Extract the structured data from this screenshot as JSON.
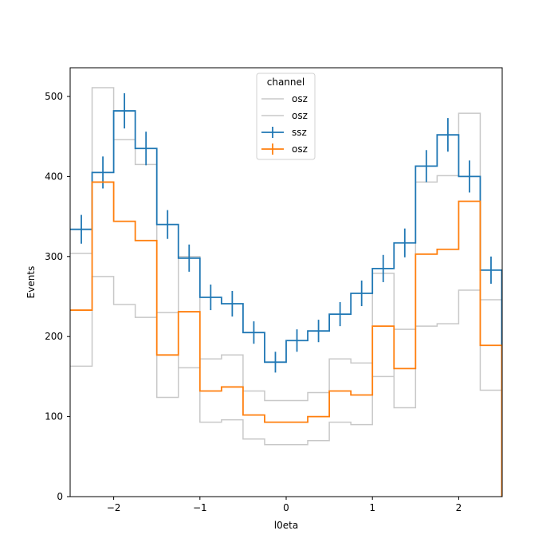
{
  "chart_data": {
    "type": "step-histogram",
    "title": "",
    "xlabel": "l0eta",
    "ylabel": "Events",
    "xlim": [
      -2.5,
      2.5
    ],
    "ylim": [
      0,
      535
    ],
    "x_ticks": [
      -2,
      -1,
      0,
      1,
      2
    ],
    "x_tick_labels": [
      "−2",
      "−1",
      "0",
      "1",
      "2"
    ],
    "y_ticks": [
      0,
      100,
      200,
      300,
      400,
      500
    ],
    "y_tick_labels": [
      "0",
      "100",
      "200",
      "300",
      "400",
      "500"
    ],
    "bin_edges": [
      -2.5,
      -2.25,
      -2.0,
      -1.75,
      -1.5,
      -1.25,
      -1.0,
      -0.75,
      -0.5,
      -0.25,
      0.0,
      0.25,
      0.5,
      0.75,
      1.0,
      1.25,
      1.5,
      1.75,
      2.0,
      2.25,
      2.5
    ],
    "grid": false,
    "legend": {
      "title": "channel",
      "placement": "upper center",
      "entries": [
        {
          "label": "osz",
          "style": "line",
          "color": "#c8c8c8"
        },
        {
          "label": "osz",
          "style": "line",
          "color": "#c8c8c8"
        },
        {
          "label": "ssz",
          "style": "errorbar",
          "color": "#1f77b4"
        },
        {
          "label": "osz",
          "style": "errorbar",
          "color": "#ff7f0e"
        }
      ]
    },
    "series": [
      {
        "label": "osz",
        "style": "step",
        "color": "#c8c8c8",
        "values": [
          304,
          511,
          446,
          415,
          124,
          300,
          93,
          96,
          72,
          65,
          65,
          70,
          93,
          90,
          279,
          111,
          393,
          401,
          479,
          133
        ]
      },
      {
        "label": "osz",
        "style": "step",
        "color": "#c8c8c8",
        "values": [
          163,
          275,
          240,
          224,
          230,
          161,
          172,
          177,
          132,
          120,
          120,
          130,
          172,
          167,
          150,
          209,
          213,
          216,
          258,
          246
        ]
      },
      {
        "label": "ssz",
        "style": "step-errorbar",
        "color": "#1f77b4",
        "values": [
          334,
          405,
          482,
          435,
          340,
          298,
          249,
          241,
          205,
          168,
          195,
          207,
          228,
          254,
          285,
          317,
          413,
          452,
          400,
          283
        ],
        "errors": [
          18,
          20,
          22,
          21,
          18,
          17,
          16,
          16,
          14,
          13,
          14,
          14,
          15,
          16,
          17,
          18,
          20,
          21,
          20,
          17
        ]
      },
      {
        "label": "osz",
        "style": "step",
        "color": "#ff7f0e",
        "values": [
          233,
          393,
          344,
          320,
          177,
          231,
          132,
          137,
          102,
          93,
          93,
          100,
          132,
          127,
          213,
          160,
          303,
          309,
          369,
          189
        ]
      }
    ]
  }
}
